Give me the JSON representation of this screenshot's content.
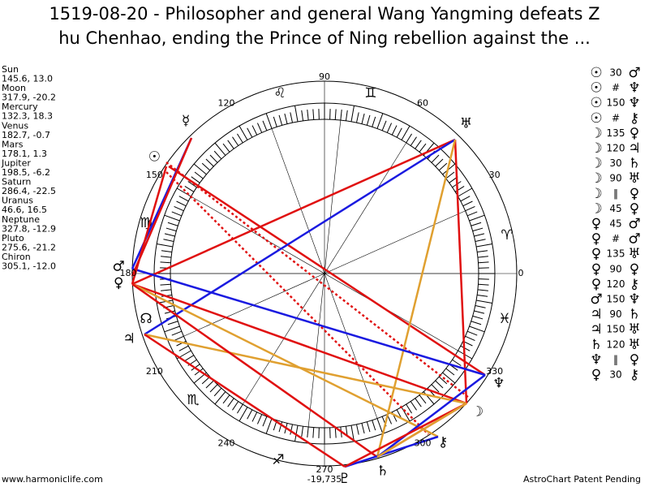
{
  "title_lines": [
    "1519-08-20 - Philosopher and general Wang Yangming defeats Z",
    "hu Chenhao, ending the Prince of Ning rebellion against the ..."
  ],
  "planets": [
    {
      "name": "Sun",
      "position": "145.6, 13.0",
      "glyph": "☉"
    },
    {
      "name": "Moon",
      "position": "317.9, -20.2",
      "glyph": "☽"
    },
    {
      "name": "Mercury",
      "position": "132.3, 18.3",
      "glyph": "☿"
    },
    {
      "name": "Venus",
      "position": "182.7, -0.7",
      "glyph": "♀"
    },
    {
      "name": "Mars",
      "position": "178.1, 1.3",
      "glyph": "♂"
    },
    {
      "name": "Jupiter",
      "position": "198.5, -6.2",
      "glyph": "♃"
    },
    {
      "name": "Saturn",
      "position": "286.4, -22.5",
      "glyph": "♄"
    },
    {
      "name": "Uranus",
      "position": "46.6, 16.5",
      "glyph": "♅"
    },
    {
      "name": "Neptune",
      "position": "327.8, -12.9",
      "glyph": "♆"
    },
    {
      "name": "Pluto",
      "position": "275.6, -21.2",
      "glyph": "♇"
    },
    {
      "name": "Chiron",
      "position": "305.1, -12.0",
      "glyph": "⚷"
    }
  ],
  "wheel": {
    "degree_labels": [
      90,
      60,
      30,
      0,
      330,
      300,
      270,
      240,
      210,
      180,
      150,
      120
    ],
    "sign_glyphs": [
      "♌",
      "♊",
      "♈",
      "♓",
      "♐",
      "♏",
      "♍"
    ],
    "node_glyph": "☊"
  },
  "aspects": [
    [
      "☉",
      "30",
      "♂"
    ],
    [
      "☉",
      "#",
      "♆"
    ],
    [
      "☉",
      "150",
      "♆"
    ],
    [
      "☉",
      "#",
      "⚷"
    ],
    [
      "☽",
      "135",
      "♀"
    ],
    [
      "☽",
      "120",
      "♃"
    ],
    [
      "☽",
      "30",
      "♄"
    ],
    [
      "☽",
      "90",
      "♅"
    ],
    [
      "☽",
      "‖",
      "♀"
    ],
    [
      "☽",
      "45",
      "♀"
    ],
    [
      "♀",
      "45",
      "♂"
    ],
    [
      "♀",
      "#",
      "♂"
    ],
    [
      "♀",
      "135",
      "♅"
    ],
    [
      "♀",
      "90",
      "♀"
    ],
    [
      "♀",
      "120",
      "⚷"
    ],
    [
      "♂",
      "150",
      "♆"
    ],
    [
      "♃",
      "90",
      "♄"
    ],
    [
      "♃",
      "150",
      "♅"
    ],
    [
      "♄",
      "120",
      "♅"
    ],
    [
      "♆",
      "‖",
      "♀"
    ],
    [
      "♀",
      "30",
      "⚷"
    ]
  ],
  "footer": {
    "left": "www.harmoniclife.com",
    "center": "-19,735",
    "right": "AstroChart Patent Pending"
  }
}
